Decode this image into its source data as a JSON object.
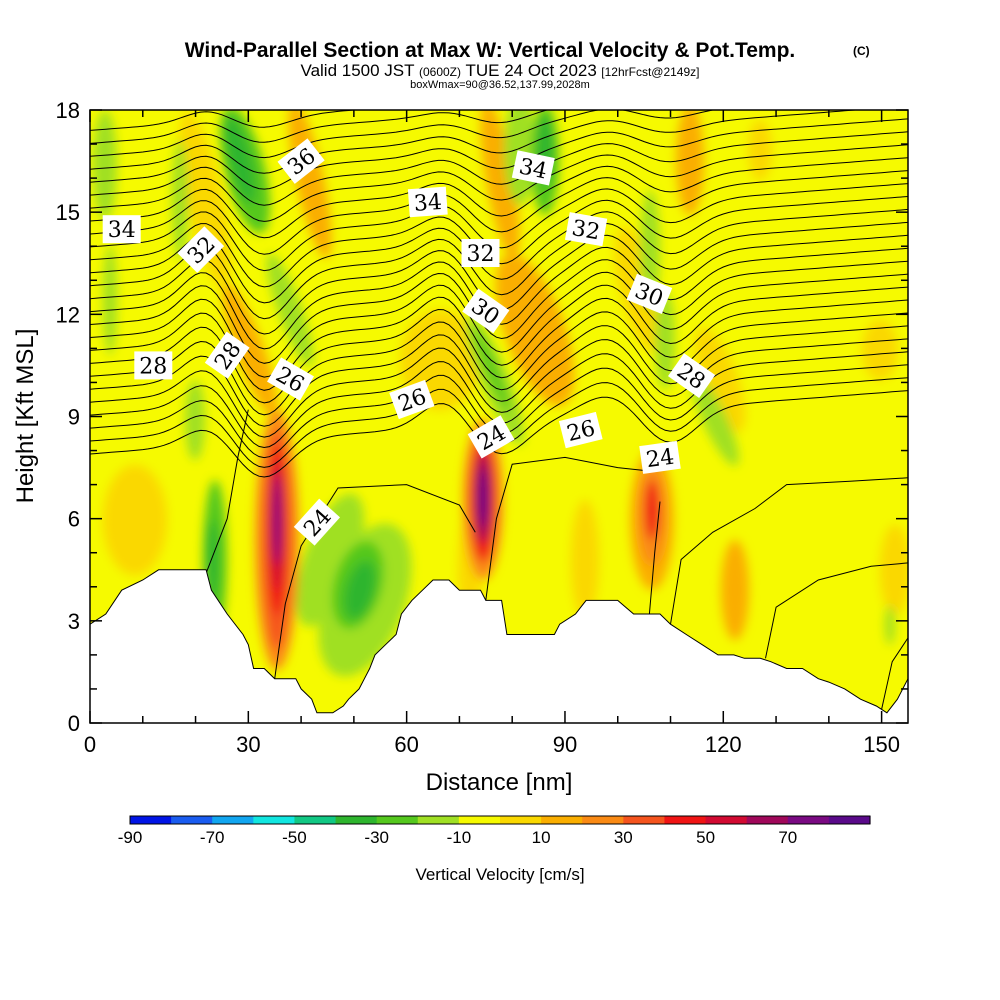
{
  "header": {
    "title": "Wind-Parallel Section at Max W: Vertical Velocity & Pot.Temp.",
    "copyright": "(C)",
    "valid_prefix": "Valid 1500 JST",
    "valid_utc": "(0600Z)",
    "valid_date": "TUE 24 Oct 2023",
    "forecast_info": "[12hrFcst@2149z]",
    "box_info": "boxWmax=90@36.52,137.99,2028m"
  },
  "chart_data": {
    "type": "heatmap",
    "xlabel": "Distance [nm]",
    "ylabel": "Height [Kft MSL]",
    "xlim": [
      0,
      155
    ],
    "ylim": [
      0,
      18
    ],
    "x_ticks": [
      "0",
      "30",
      "60",
      "90",
      "120",
      "150"
    ],
    "x_tick_values": [
      0,
      30,
      60,
      90,
      120,
      150
    ],
    "y_ticks": [
      "0",
      "3",
      "6",
      "9",
      "12",
      "15",
      "18"
    ],
    "y_tick_values": [
      0,
      3,
      6,
      9,
      12,
      15,
      18
    ],
    "terrain": [
      [
        0,
        2.9
      ],
      [
        3,
        3.2
      ],
      [
        6,
        3.9
      ],
      [
        10,
        4.2
      ],
      [
        13,
        4.5
      ],
      [
        18,
        4.5
      ],
      [
        22,
        4.5
      ],
      [
        23,
        3.9
      ],
      [
        26,
        3.2
      ],
      [
        29,
        2.6
      ],
      [
        30,
        2.3
      ],
      [
        31,
        1.6
      ],
      [
        33,
        1.6
      ],
      [
        35,
        1.3
      ],
      [
        39,
        1.3
      ],
      [
        40,
        1
      ],
      [
        42,
        0.7
      ],
      [
        43,
        0.3
      ],
      [
        46,
        0.3
      ],
      [
        48,
        0.5
      ],
      [
        49,
        0.7
      ],
      [
        51,
        1
      ],
      [
        52,
        1.3
      ],
      [
        53,
        1.6
      ],
      [
        54,
        2
      ],
      [
        56,
        2.3
      ],
      [
        58,
        2.6
      ],
      [
        59,
        3.2
      ],
      [
        61,
        3.6
      ],
      [
        63,
        3.9
      ],
      [
        65,
        4.2
      ],
      [
        68,
        4.2
      ],
      [
        70,
        3.9
      ],
      [
        74,
        3.9
      ],
      [
        75,
        3.6
      ],
      [
        78,
        3.6
      ],
      [
        79,
        2.6
      ],
      [
        85,
        2.6
      ],
      [
        88,
        2.6
      ],
      [
        89,
        2.9
      ],
      [
        92,
        3.2
      ],
      [
        94,
        3.6
      ],
      [
        100,
        3.6
      ],
      [
        103,
        3.2
      ],
      [
        108,
        3.2
      ],
      [
        110,
        2.9
      ],
      [
        113,
        2.6
      ],
      [
        116,
        2.3
      ],
      [
        119,
        2
      ],
      [
        122,
        2
      ],
      [
        124,
        1.9
      ],
      [
        127,
        1.9
      ],
      [
        129,
        1.8
      ],
      [
        132,
        1.6
      ],
      [
        135,
        1.6
      ],
      [
        138,
        1.3
      ],
      [
        140,
        1.2
      ],
      [
        143,
        1
      ],
      [
        146,
        0.7
      ],
      [
        149,
        0.5
      ],
      [
        151,
        0.3
      ],
      [
        153,
        0.7
      ],
      [
        155,
        1.3
      ]
    ],
    "theta_contours": [
      {
        "label": "24",
        "label_x": 43,
        "label_y": 5.9,
        "label_angle": -48
      },
      {
        "label": "24",
        "label_x": 76,
        "label_y": 8.4,
        "label_angle": -30
      },
      {
        "label": "24",
        "label_x": 108,
        "label_y": 7.8,
        "label_angle": -8
      },
      {
        "label": "26",
        "label_x": 38,
        "label_y": 10.1,
        "label_angle": 30
      },
      {
        "label": "26",
        "label_x": 61,
        "label_y": 9.5,
        "label_angle": -20
      },
      {
        "label": "26",
        "label_x": 93,
        "label_y": 8.6,
        "label_angle": -14
      },
      {
        "label": "28",
        "label_x": 12,
        "label_y": 10.5,
        "label_angle": 0
      },
      {
        "label": "28",
        "label_x": 26,
        "label_y": 10.8,
        "label_angle": -55
      },
      {
        "label": "28",
        "label_x": 114,
        "label_y": 10.2,
        "label_angle": 35
      },
      {
        "label": "30",
        "label_x": 75,
        "label_y": 12.1,
        "label_angle": 35
      },
      {
        "label": "30",
        "label_x": 106,
        "label_y": 12.6,
        "label_angle": 22
      },
      {
        "label": "32",
        "label_x": 21,
        "label_y": 13.9,
        "label_angle": -45
      },
      {
        "label": "32",
        "label_x": 74,
        "label_y": 13.8,
        "label_angle": 0
      },
      {
        "label": "32",
        "label_x": 94,
        "label_y": 14.5,
        "label_angle": 10
      },
      {
        "label": "34",
        "label_x": 6,
        "label_y": 14.5,
        "label_angle": 0
      },
      {
        "label": "34",
        "label_x": 64,
        "label_y": 15.3,
        "label_angle": -4
      },
      {
        "label": "34",
        "label_x": 84,
        "label_y": 16.3,
        "label_angle": 12
      },
      {
        "label": "36",
        "label_x": 40,
        "label_y": 16.5,
        "label_angle": -38
      }
    ],
    "velocity_features": [
      {
        "kind": "updraft",
        "x": 35.5,
        "y": 5.8,
        "w_max": 70
      },
      {
        "kind": "updraft",
        "x": 74.5,
        "y": 6.8,
        "w_max": 70
      },
      {
        "kind": "updraft",
        "x": 106.5,
        "y": 6.5,
        "w_max": 50
      },
      {
        "kind": "downdraft",
        "x": 49.5,
        "y": 4,
        "w_min": -30
      },
      {
        "kind": "downdraft",
        "x": 23.5,
        "y": 5.3,
        "w_min": -30
      },
      {
        "kind": "downdraft",
        "x": 28.5,
        "y": 16.5,
        "w_min": -20
      },
      {
        "kind": "downdraft",
        "x": 80,
        "y": 17,
        "w_min": -20
      }
    ]
  },
  "colorbar": {
    "label": "Vertical Velocity [cm/s]",
    "tick_labels": [
      "-90",
      "-70",
      "-50",
      "-30",
      "-10",
      "10",
      "30",
      "50",
      "70"
    ],
    "colors": [
      "#0014e6",
      "#1a5cf0",
      "#11a6f0",
      "#11e6e0",
      "#11c884",
      "#2eb52e",
      "#55c81e",
      "#a0e024",
      "#f6fa00",
      "#fad800",
      "#faae00",
      "#fa8a14",
      "#f5541e",
      "#f01414",
      "#d20a32",
      "#a0085a",
      "#7a0a82",
      "#5a0a8a"
    ]
  }
}
